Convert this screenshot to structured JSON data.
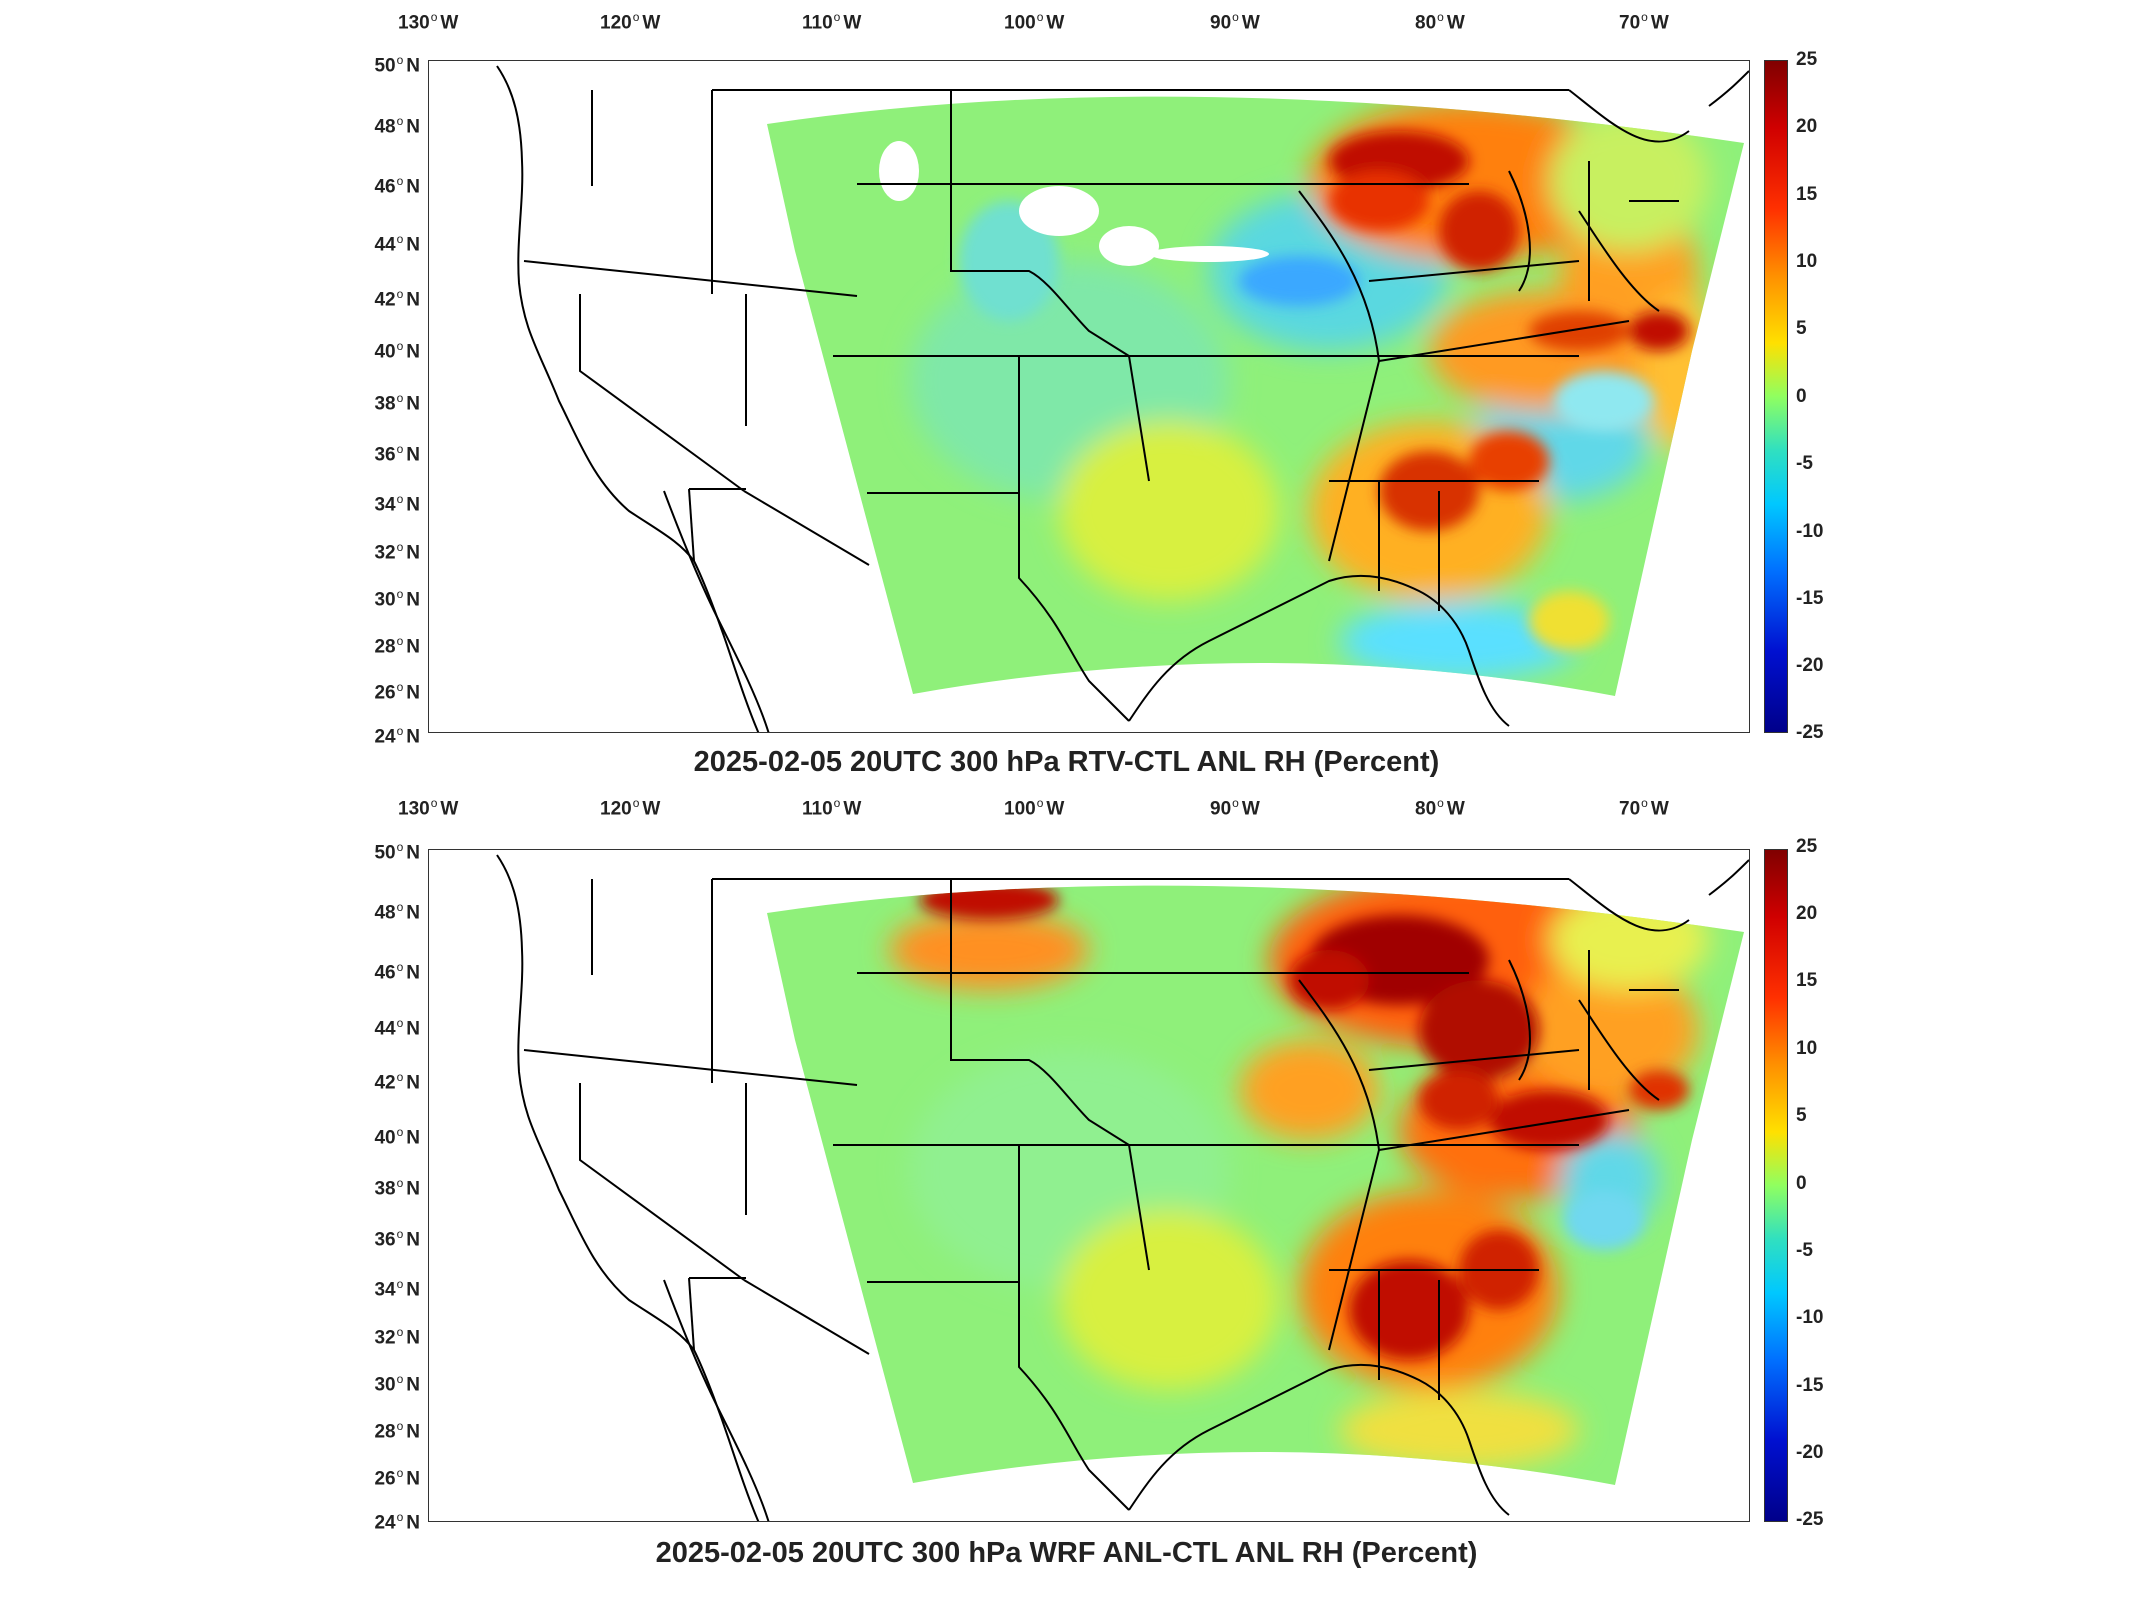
{
  "panels": [
    {
      "title": "2025-02-05 20UTC 300 hPa RTV-CTL ANL RH (Percent)",
      "lon_ticks": [
        "130",
        "120",
        "110",
        "100",
        "90",
        "80",
        "70"
      ],
      "lon_suffix": "W",
      "lat_ticks": [
        "50",
        "48",
        "46",
        "44",
        "42",
        "40",
        "38",
        "36",
        "34",
        "32",
        "30",
        "28",
        "26",
        "24"
      ],
      "lat_suffix": "N",
      "colorbar_ticks": [
        "25",
        "20",
        "15",
        "10",
        "5",
        "0",
        "-5",
        "-10",
        "-15",
        "-20",
        "-25"
      ]
    },
    {
      "title": "2025-02-05 20UTC 300 hPa WRF ANL-CTL ANL RH (Percent)",
      "lon_ticks": [
        "130",
        "120",
        "110",
        "100",
        "90",
        "80",
        "70"
      ],
      "lon_suffix": "W",
      "lat_ticks": [
        "50",
        "48",
        "46",
        "44",
        "42",
        "40",
        "38",
        "36",
        "34",
        "32",
        "30",
        "28",
        "26",
        "24"
      ],
      "lat_suffix": "N",
      "colorbar_ticks": [
        "25",
        "20",
        "15",
        "10",
        "5",
        "0",
        "-5",
        "-10",
        "-15",
        "-20",
        "-25"
      ]
    }
  ],
  "colors": {
    "positive_max": "#800000",
    "zero": "#90ff60",
    "negative_min": "#00008a"
  }
}
